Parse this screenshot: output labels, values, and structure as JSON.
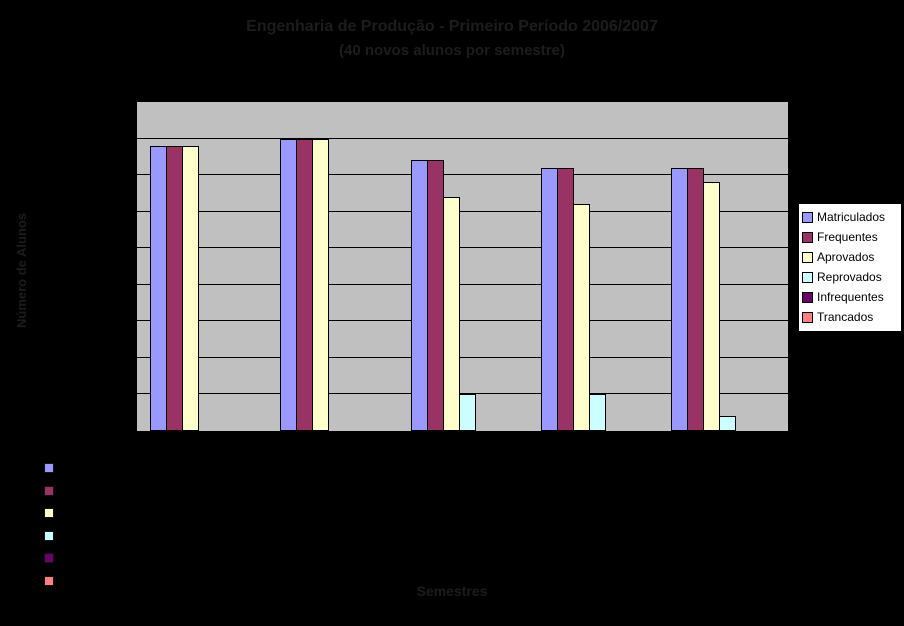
{
  "title": {
    "line1": "Engenharia de Produção - Primeiro Período 2006/2007",
    "line2": "(40 novos alunos por semestre)"
  },
  "axes": {
    "y_title": "Número de Alunos",
    "x_title": "Semestres",
    "y_max": 45,
    "y_gridline_step": 5,
    "tick_labels_visible": false,
    "category_labels_visible": false
  },
  "colors": {
    "chart_background": "#000000",
    "plot_background": "#c0c0c0",
    "gridline": "#000000",
    "legend_background": "#ffffff",
    "faint_text": "#1c1c1c"
  },
  "legend": {
    "position": "right",
    "items": [
      {
        "label": "Matriculados",
        "color": "#9999FF"
      },
      {
        "label": "Frequentes",
        "color": "#993366"
      },
      {
        "label": "Aprovados",
        "color": "#FFFFCC"
      },
      {
        "label": "Reprovados",
        "color": "#CCFFFF"
      },
      {
        "label": "Infrequentes",
        "color": "#660066"
      },
      {
        "label": "Trancados",
        "color": "#FF8080"
      }
    ]
  },
  "bottom_legend": {
    "labels_visible": false,
    "swatch_colors": [
      "#9999FF",
      "#993366",
      "#FFFFCC",
      "#CCFFFF",
      "#660066",
      "#FF8080"
    ]
  },
  "chart_data": {
    "type": "bar",
    "categories": [
      "",
      "",
      "",
      "",
      ""
    ],
    "series": [
      {
        "name": "Matriculados",
        "color": "#9999FF",
        "values": [
          39,
          40,
          37,
          36,
          36
        ]
      },
      {
        "name": "Frequentes",
        "color": "#993366",
        "values": [
          39,
          40,
          37,
          36,
          36
        ]
      },
      {
        "name": "Aprovados",
        "color": "#FFFFCC",
        "values": [
          39,
          40,
          32,
          31,
          34
        ]
      },
      {
        "name": "Reprovados",
        "color": "#CCFFFF",
        "values": [
          0,
          0,
          5,
          5,
          2
        ]
      },
      {
        "name": "Infrequentes",
        "color": "#660066",
        "values": [
          0,
          0,
          0,
          0,
          0
        ]
      },
      {
        "name": "Trancados",
        "color": "#FF8080",
        "values": [
          0,
          0,
          0,
          0,
          0
        ]
      }
    ],
    "title": "Engenharia de Produção - Primeiro Período 2006/2007",
    "subtitle": "(40 novos alunos por semestre)",
    "xlabel": "Semestres",
    "ylabel": "Número de Alunos",
    "ylim": [
      0,
      45
    ],
    "grid": true,
    "legend_position": "right"
  }
}
